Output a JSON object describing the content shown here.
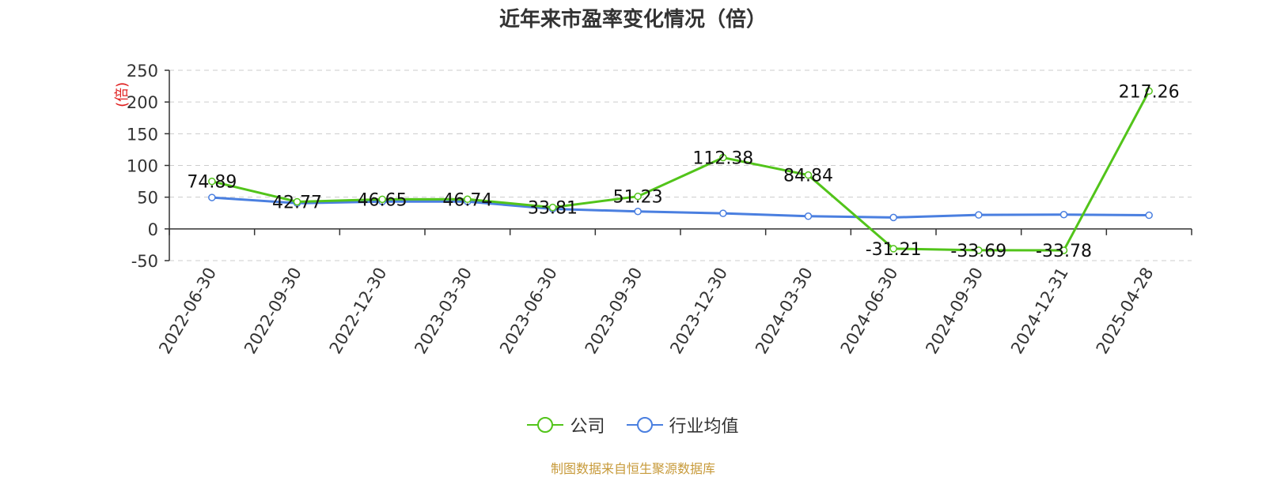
{
  "title": "近年来市盈率变化情况（倍）",
  "source": "制图数据来自恒生聚源数据库",
  "colors": {
    "company": "#52c41a",
    "industry": "#4a7fe0",
    "grid": "#cccccc",
    "axis": "#333333",
    "ylabel": "#e02020"
  },
  "chart_data": {
    "type": "line",
    "title": "近年来市盈率变化情况（倍）",
    "ylabel": "(倍)",
    "xlabel": "",
    "categories": [
      "2022-06-30",
      "2022-09-30",
      "2022-12-30",
      "2023-03-30",
      "2023-06-30",
      "2023-09-30",
      "2023-12-30",
      "2024-03-30",
      "2024-06-30",
      "2024-09-30",
      "2024-12-31",
      "2025-04-28"
    ],
    "ylim": [
      -50,
      250
    ],
    "yticks": [
      -50,
      0,
      50,
      100,
      150,
      200,
      250
    ],
    "grid": true,
    "legend_position": "bottom",
    "series": [
      {
        "name": "公司",
        "values": [
          74.89,
          42.77,
          46.65,
          46.74,
          33.81,
          51.23,
          112.38,
          84.84,
          -31.21,
          -33.69,
          -33.78,
          217.26
        ],
        "labels": [
          "74.89",
          "42.77",
          "46.65",
          "46.74",
          "33.81",
          "51.23",
          "112.38",
          "84.84",
          "-31.21",
          "-33.69",
          "-33.78",
          "217.26"
        ]
      },
      {
        "name": "行业均值",
        "values": [
          49.5,
          40.5,
          43.0,
          43.0,
          31.5,
          27.5,
          24.5,
          20.0,
          18.0,
          22.0,
          22.5,
          21.5
        ]
      }
    ]
  }
}
